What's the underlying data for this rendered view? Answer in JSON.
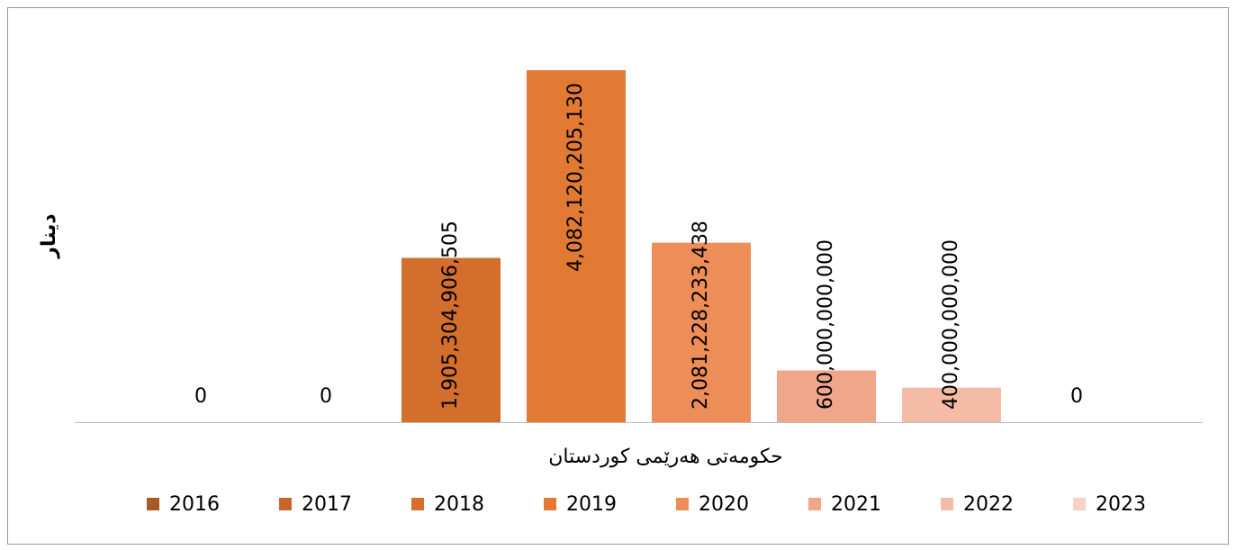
{
  "chart_data": {
    "type": "bar",
    "y_label": "دینار",
    "categories": [
      "حکومەتی هەرێمی کوردستان"
    ],
    "series": [
      {
        "name": "2016",
        "color": "#a85a24",
        "values": [
          0
        ],
        "value_labels": [
          "0"
        ]
      },
      {
        "name": "2017",
        "color": "#c8662a",
        "values": [
          0
        ],
        "value_labels": [
          "0"
        ]
      },
      {
        "name": "2018",
        "color": "#d46e2c",
        "values": [
          1905304906505
        ],
        "value_labels": [
          "1,905,304,906,505"
        ]
      },
      {
        "name": "2019",
        "color": "#e27a33",
        "values": [
          4082120205130
        ],
        "value_labels": [
          "4,082,120,205,130"
        ]
      },
      {
        "name": "2020",
        "color": "#ed8d57",
        "values": [
          2081228233438
        ],
        "value_labels": [
          "2,081,228,233,438"
        ]
      },
      {
        "name": "2021",
        "color": "#f0a688",
        "values": [
          600000000000
        ],
        "value_labels": [
          "600,000,000,000"
        ]
      },
      {
        "name": "2022",
        "color": "#f4bca6",
        "values": [
          400000000000
        ],
        "value_labels": [
          "400,000,000,000"
        ]
      },
      {
        "name": "2023",
        "color": "#f8d3c5",
        "values": [
          0
        ],
        "value_labels": [
          "0"
        ]
      }
    ],
    "ylim": [
      0,
      4500000000000
    ]
  }
}
